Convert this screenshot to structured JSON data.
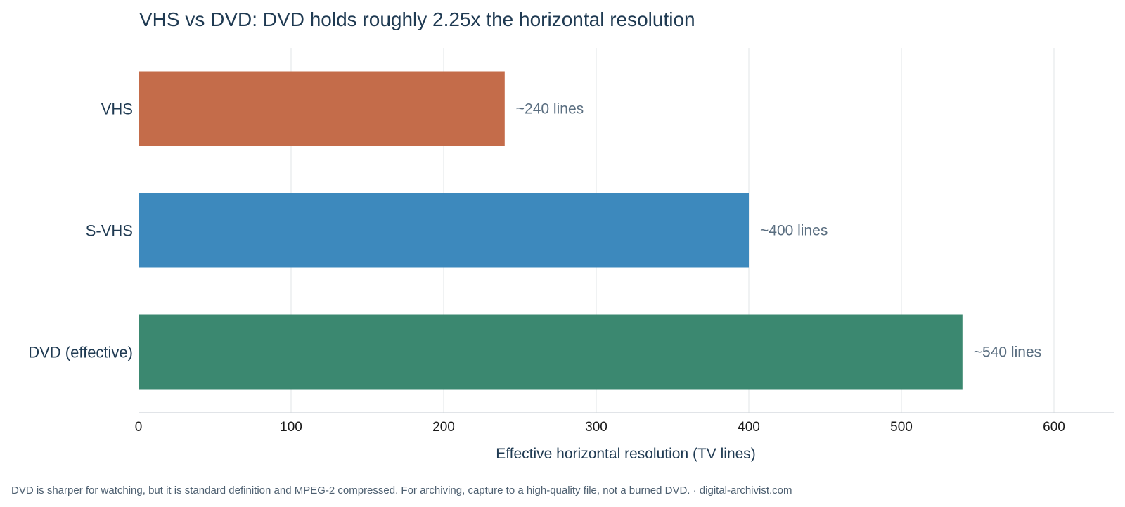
{
  "chart_data": {
    "type": "bar",
    "orientation": "horizontal",
    "title": "VHS vs DVD: DVD holds roughly 2.25x the horizontal resolution",
    "categories": [
      "VHS",
      "S-VHS",
      "DVD (effective)"
    ],
    "values": [
      240,
      400,
      540
    ],
    "data_labels": [
      "~240 lines",
      "~400 lines",
      "~540 lines"
    ],
    "colors": [
      "#c46c4a",
      "#3d89bd",
      "#3b8870"
    ],
    "xlabel": "Effective horizontal resolution (TV lines)",
    "ylabel": "",
    "xlim": [
      0,
      640
    ],
    "xticks": [
      0,
      100,
      200,
      300,
      400,
      500,
      600
    ],
    "grid": "vertical",
    "legend": "none"
  },
  "footnote": "DVD is sharper for watching, but it is standard definition and MPEG-2 compressed. For archiving, capture to a high-quality file, not a burned DVD.  ·  digital-archivist.com"
}
